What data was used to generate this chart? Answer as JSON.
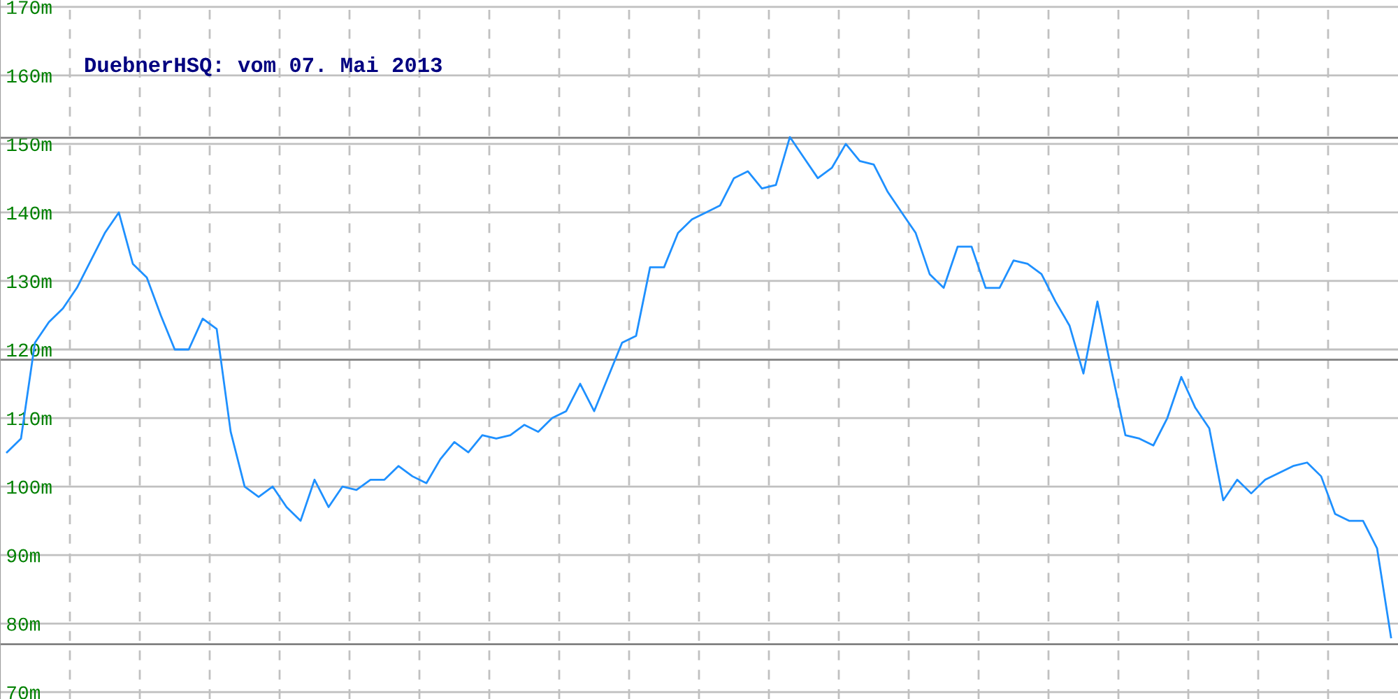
{
  "chart_data": {
    "type": "line",
    "title": "DuebnerHSQ: vom 07. Mai 2013",
    "categories": [
      null,
      null,
      null,
      null,
      null,
      null,
      null,
      null,
      null,
      null,
      null,
      null,
      null,
      null,
      null,
      null,
      null,
      null,
      null,
      null,
      null,
      null,
      null,
      null,
      null,
      null,
      null,
      null,
      null,
      null,
      null,
      null,
      null,
      null,
      null,
      null,
      null,
      null,
      null,
      null,
      null,
      null,
      null,
      null,
      null,
      null,
      null,
      null,
      null,
      null,
      null,
      null,
      null,
      null,
      null,
      null,
      null,
      null,
      null,
      null,
      null,
      null,
      null,
      null,
      null,
      null,
      null,
      null,
      null,
      null,
      null,
      null,
      null,
      null,
      null,
      null,
      null,
      null,
      null,
      null,
      null,
      null,
      null,
      null,
      null,
      null,
      null,
      null,
      null,
      null,
      null,
      null,
      null,
      null,
      null,
      null,
      null,
      null,
      null,
      null
    ],
    "series": [
      {
        "color": "#1e90ff",
        "values": [
          105,
          107,
          121,
          124,
          126,
          129,
          133,
          137,
          140,
          132.5,
          130.5,
          125,
          120,
          120,
          124.5,
          123,
          108,
          100,
          98.5,
          100,
          97,
          95,
          101,
          97,
          100,
          99.5,
          101,
          101,
          103,
          101.5,
          100.5,
          104,
          106.5,
          105,
          107.5,
          107,
          107.5,
          109,
          108,
          110,
          111,
          115,
          111,
          116,
          121,
          122,
          132,
          132,
          137,
          139,
          140,
          141,
          145,
          146,
          143.5,
          144,
          151,
          148,
          145,
          146.5,
          150,
          147.5,
          147,
          143,
          140,
          137,
          131,
          129,
          135,
          135,
          129,
          129,
          133,
          132.5,
          131,
          127,
          123.5,
          116.5,
          127,
          117,
          107.5,
          107,
          106,
          110,
          116,
          111.5,
          108.5,
          98,
          101,
          99,
          101,
          102,
          103,
          103.5,
          101.5,
          96,
          95,
          95,
          91,
          78
        ]
      }
    ],
    "ylim": [
      69,
      171
    ],
    "yticks": [
      {
        "value": 70,
        "label": "70m"
      },
      {
        "value": 80,
        "label": "80m"
      },
      {
        "value": 90,
        "label": "90m"
      },
      {
        "value": 100,
        "label": "100m"
      },
      {
        "value": 110,
        "label": "110m"
      },
      {
        "value": 120,
        "label": "120m"
      },
      {
        "value": 130,
        "label": "130m"
      },
      {
        "value": 140,
        "label": "140m"
      },
      {
        "value": 150,
        "label": "150m"
      },
      {
        "value": 160,
        "label": "160m"
      },
      {
        "value": 170,
        "label": "170m"
      }
    ],
    "tick_labels": "y",
    "grid": true,
    "marker": "none",
    "line_style": "solid",
    "ref_lines": [
      {
        "axis": "y",
        "value": 150.9,
        "color": "#808080"
      },
      {
        "axis": "y",
        "value": 118.5,
        "color": "#808080"
      },
      {
        "axis": "y",
        "value": 77,
        "color": "#808080"
      }
    ]
  }
}
